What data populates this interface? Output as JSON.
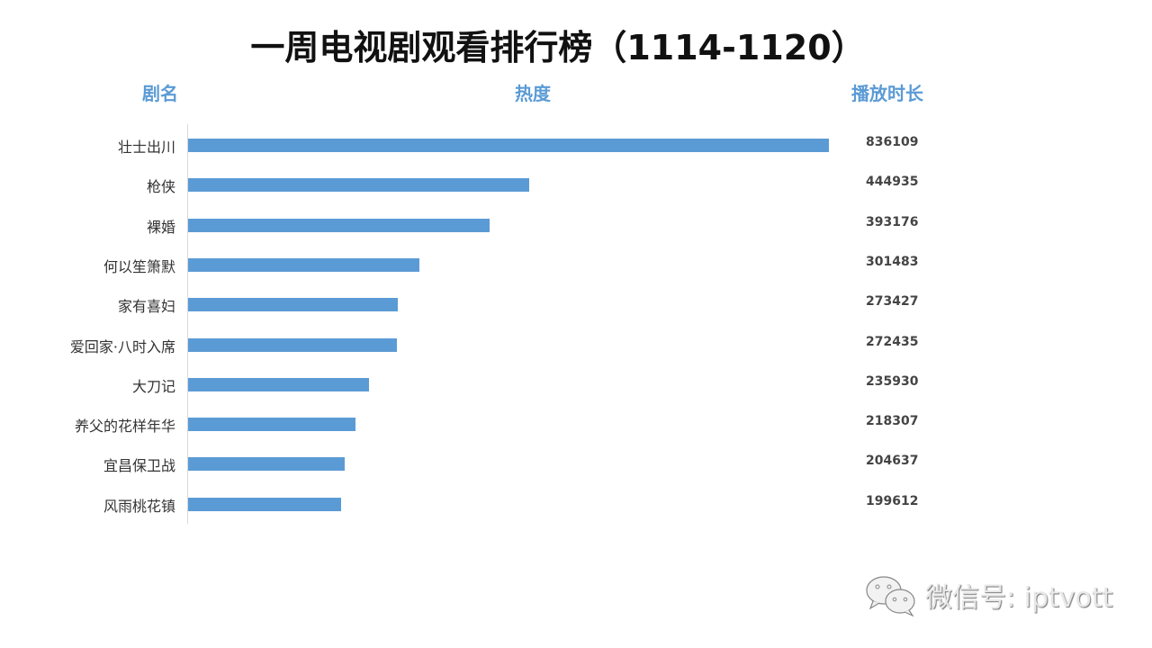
{
  "title": "一周电视剧观看排行榜（1114-1120）",
  "headers": {
    "name": "剧名",
    "heat": "热度",
    "duration": "播放时长"
  },
  "watermark": {
    "icon": "wechat-icon",
    "text": "微信号: iptvott"
  },
  "colors": {
    "bar": "#5b9bd5",
    "header": "#5b9bd5"
  },
  "rows": [
    {
      "name": "壮士出川",
      "value": "836109"
    },
    {
      "name": "枪侠",
      "value": "444935"
    },
    {
      "name": "裸婚",
      "value": "393176"
    },
    {
      "name": "何以笙箫默",
      "value": "301483"
    },
    {
      "name": "家有喜妇",
      "value": "273427"
    },
    {
      "name": "爱回家·八时入席",
      "value": "272435"
    },
    {
      "name": "大刀记",
      "value": "235930"
    },
    {
      "name": "养父的花样年华",
      "value": "218307"
    },
    {
      "name": "宜昌保卫战",
      "value": "204637"
    },
    {
      "name": "风雨桃花镇",
      "value": "199612"
    }
  ],
  "chart_data": {
    "type": "bar",
    "orientation": "horizontal",
    "title": "一周电视剧观看排行榜（1114-1120）",
    "xlabel": "热度",
    "ylabel": "剧名",
    "value_label_header": "播放时长",
    "categories": [
      "壮士出川",
      "枪侠",
      "裸婚",
      "何以笙箫默",
      "家有喜妇",
      "爱回家·八时入席",
      "大刀记",
      "养父的花样年华",
      "宜昌保卫战",
      "风雨桃花镇"
    ],
    "values": [
      836109,
      444935,
      393176,
      301483,
      273427,
      272435,
      235930,
      218307,
      204637,
      199612
    ],
    "xlim": [
      0,
      836109
    ],
    "grid": false,
    "legend": null
  }
}
